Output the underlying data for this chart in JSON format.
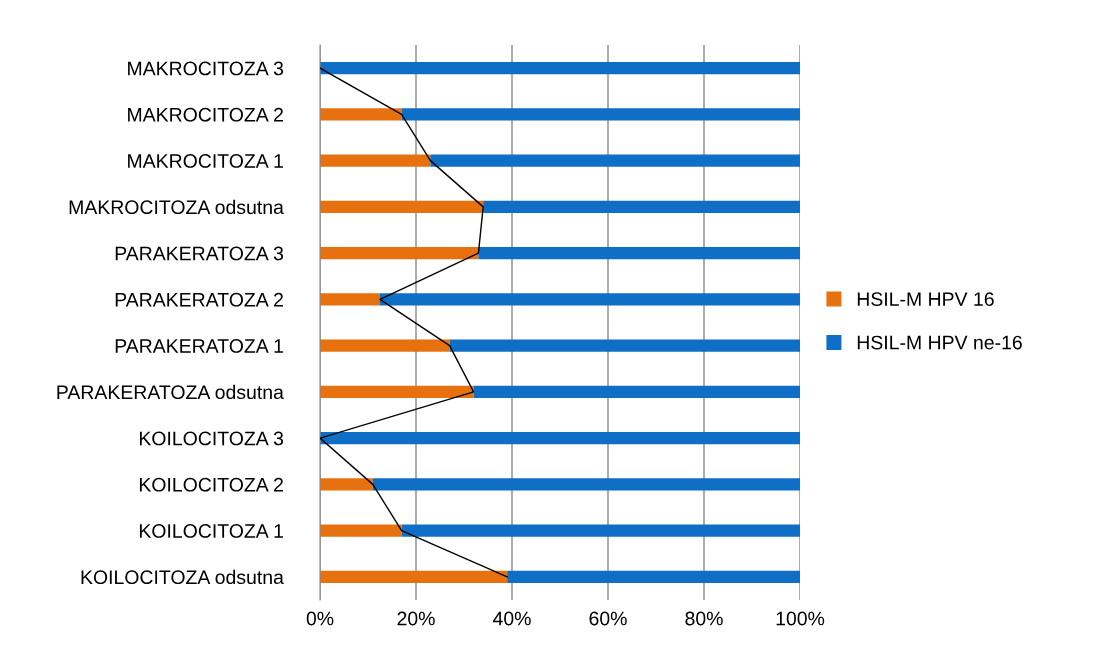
{
  "chart_data": {
    "type": "bar",
    "orientation": "horizontal",
    "stacked": true,
    "categories": [
      "MAKROCITOZA 3",
      "MAKROCITOZA 2",
      "MAKROCITOZA 1",
      "MAKROCITOZA odsutna",
      "PARAKERATOZA 3",
      "PARAKERATOZA 2",
      "PARAKERATOZA 1",
      "PARAKERATOZA odsutna",
      "KOILOCITOZA 3",
      "KOILOCITOZA 2",
      "KOILOCITOZA 1",
      "KOILOCITOZA odsutna"
    ],
    "series": [
      {
        "name": "HSIL-M HPV 16",
        "color": "#e8710f",
        "values": [
          0,
          17,
          23,
          34,
          33,
          12.5,
          27,
          32,
          0,
          11,
          17,
          39
        ]
      },
      {
        "name": "HSIL-M HPV ne-16",
        "color": "#0f6fc6",
        "values": [
          100,
          83,
          77,
          66,
          67,
          87.5,
          73,
          68,
          100,
          89,
          83,
          61
        ]
      },
      {
        "type": "line",
        "color": "#000000",
        "values": [
          0,
          17,
          23,
          34,
          33,
          12.5,
          27,
          32,
          0,
          11,
          17,
          39
        ]
      }
    ],
    "xlim": [
      0,
      100
    ],
    "xticks": [
      {
        "value": 0,
        "label": "0%"
      },
      {
        "value": 20,
        "label": "20%"
      },
      {
        "value": 40,
        "label": "40%"
      },
      {
        "value": 60,
        "label": "60%"
      },
      {
        "value": 80,
        "label": "80%"
      },
      {
        "value": 100,
        "label": "100%"
      }
    ],
    "grid": "x",
    "legend": "right"
  }
}
